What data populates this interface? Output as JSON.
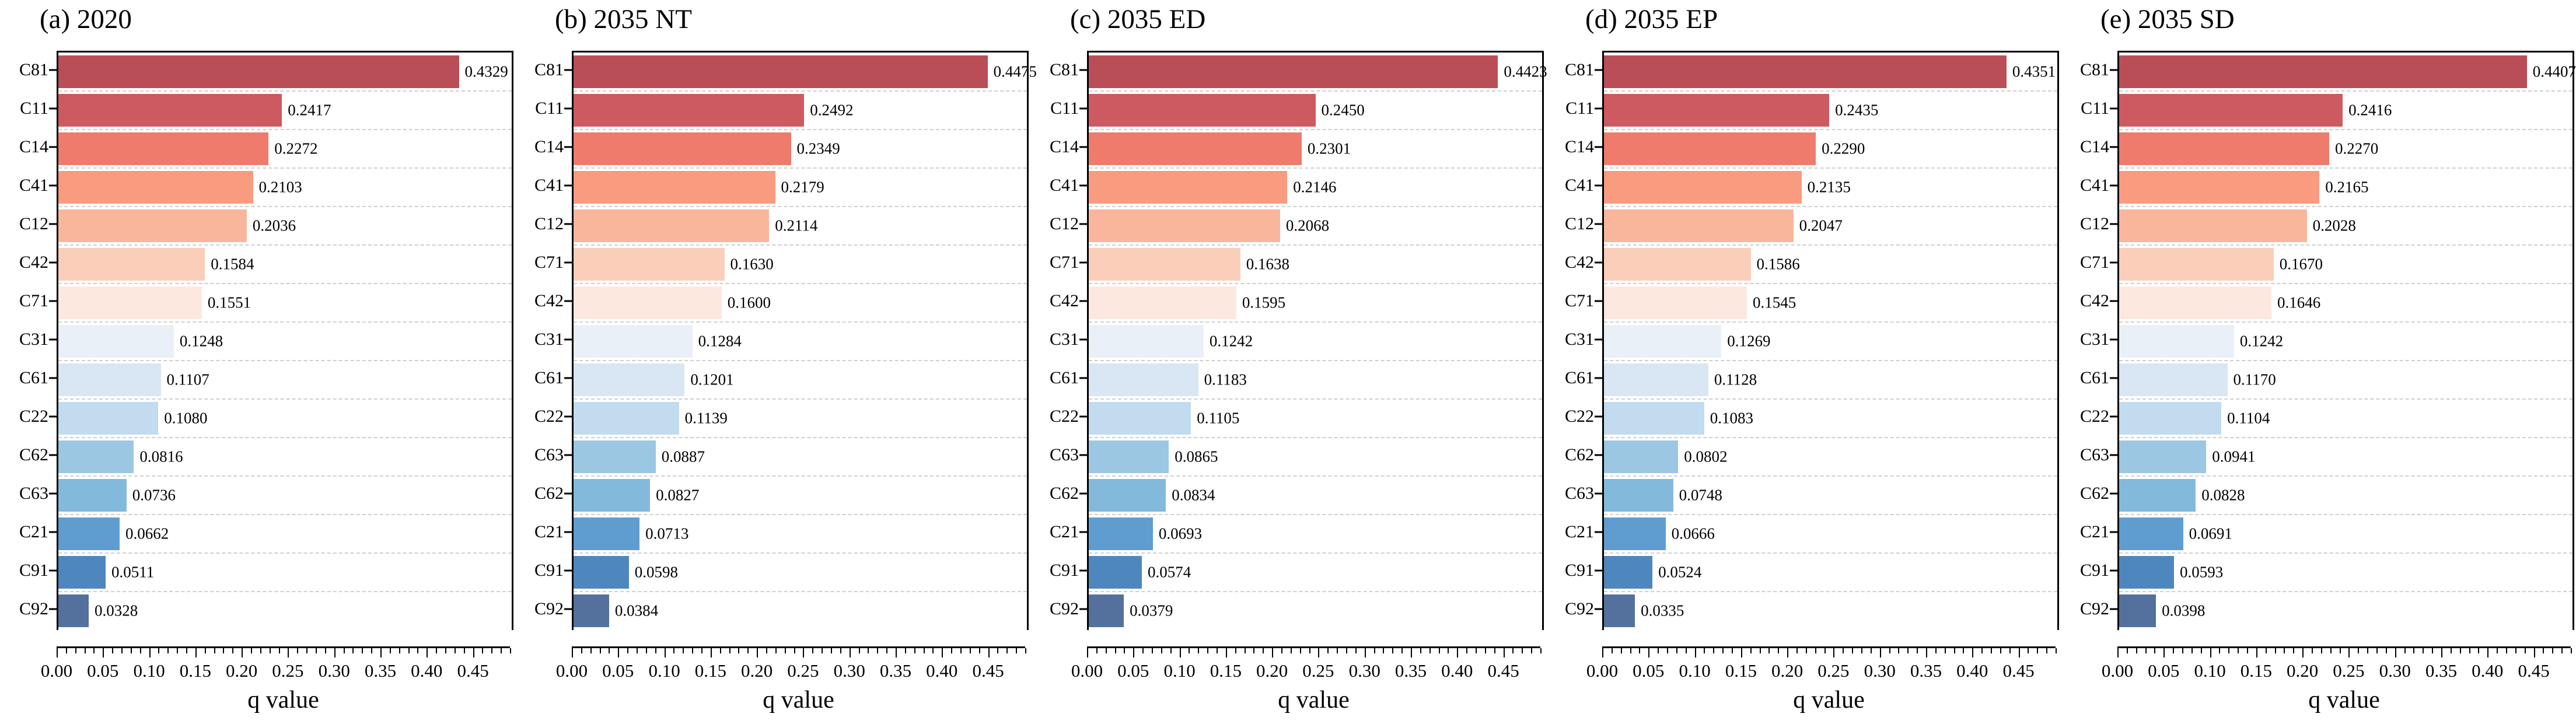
{
  "figure": {
    "xlabel": "q value",
    "background_color": "#ffffff",
    "text_color": "#000000",
    "gridline_color": "#cfcfcf",
    "spine_color": "#000000",
    "x_tick_labels": [
      "0.00",
      "0.05",
      "0.10",
      "0.15",
      "0.20",
      "0.25",
      "0.30",
      "0.35",
      "0.40",
      "0.45"
    ],
    "x_minor_step": 0.01,
    "x_major_step": 0.05,
    "x_max": 0.49,
    "bar_rank_colors": [
      "#ba4e56",
      "#cd5a60",
      "#ee7b6b",
      "#f89b7f",
      "#fab69c",
      "#fbceba",
      "#fde8df",
      "#e9f0f8",
      "#d8e7f3",
      "#c2dbee",
      "#9bc7e3",
      "#83badc",
      "#5f9dd0",
      "#4e87bd",
      "#53719c"
    ]
  },
  "chart_data": [
    {
      "type": "bar",
      "orientation": "horizontal",
      "title": "(a) 2020",
      "xlabel": "q value",
      "xlim": [
        0,
        0.49
      ],
      "grid": "dashed-horizontal",
      "categories": [
        "C81",
        "C11",
        "C14",
        "C41",
        "C12",
        "C42",
        "C71",
        "C31",
        "C61",
        "C22",
        "C62",
        "C63",
        "C21",
        "C91",
        "C92"
      ],
      "values": [
        0.4329,
        0.2417,
        0.2272,
        0.2103,
        0.2036,
        0.1584,
        0.1551,
        0.1248,
        0.1107,
        0.108,
        0.0816,
        0.0736,
        0.0662,
        0.0511,
        0.0328
      ],
      "values_text": [
        "0.4329",
        "0.2417",
        "0.2272",
        "0.2103",
        "0.2036",
        "0.1584",
        "0.1551",
        "0.1248",
        "0.1107",
        "0.1080",
        "0.0816",
        "0.0736",
        "0.0662",
        "0.0511",
        "0.0328"
      ]
    },
    {
      "type": "bar",
      "orientation": "horizontal",
      "title": "(b) 2035 NT",
      "xlabel": "q value",
      "xlim": [
        0,
        0.49
      ],
      "grid": "dashed-horizontal",
      "categories": [
        "C81",
        "C11",
        "C14",
        "C41",
        "C12",
        "C71",
        "C42",
        "C31",
        "C61",
        "C22",
        "C63",
        "C62",
        "C21",
        "C91",
        "C92"
      ],
      "values": [
        0.4475,
        0.2492,
        0.2349,
        0.2179,
        0.2114,
        0.163,
        0.16,
        0.1284,
        0.1201,
        0.1139,
        0.0887,
        0.0827,
        0.0713,
        0.0598,
        0.0384
      ],
      "values_text": [
        "0.4475",
        "0.2492",
        "0.2349",
        "0.2179",
        "0.2114",
        "0.1630",
        "0.1600",
        "0.1284",
        "0.1201",
        "0.1139",
        "0.0887",
        "0.0827",
        "0.0713",
        "0.0598",
        "0.0384"
      ]
    },
    {
      "type": "bar",
      "orientation": "horizontal",
      "title": "(c) 2035 ED",
      "xlabel": "q value",
      "xlim": [
        0,
        0.49
      ],
      "grid": "dashed-horizontal",
      "categories": [
        "C81",
        "C11",
        "C14",
        "C41",
        "C12",
        "C71",
        "C42",
        "C31",
        "C61",
        "C22",
        "C63",
        "C62",
        "C21",
        "C91",
        "C92"
      ],
      "values": [
        0.4423,
        0.245,
        0.2301,
        0.2146,
        0.2068,
        0.1638,
        0.1595,
        0.1242,
        0.1183,
        0.1105,
        0.0865,
        0.0834,
        0.0693,
        0.0574,
        0.0379
      ],
      "values_text": [
        "0.4423",
        "0.2450",
        "0.2301",
        "0.2146",
        "0.2068",
        "0.1638",
        "0.1595",
        "0.1242",
        "0.1183",
        "0.1105",
        "0.0865",
        "0.0834",
        "0.0693",
        "0.0574",
        "0.0379"
      ]
    },
    {
      "type": "bar",
      "orientation": "horizontal",
      "title": "(d) 2035 EP",
      "xlabel": "q value",
      "xlim": [
        0,
        0.49
      ],
      "grid": "dashed-horizontal",
      "categories": [
        "C81",
        "C11",
        "C14",
        "C41",
        "C12",
        "C42",
        "C71",
        "C31",
        "C61",
        "C22",
        "C62",
        "C63",
        "C21",
        "C91",
        "C92"
      ],
      "values": [
        0.4351,
        0.2435,
        0.229,
        0.2135,
        0.2047,
        0.1586,
        0.1545,
        0.1269,
        0.1128,
        0.1083,
        0.0802,
        0.0748,
        0.0666,
        0.0524,
        0.0335
      ],
      "values_text": [
        "0.4351",
        "0.2435",
        "0.2290",
        "0.2135",
        "0.2047",
        "0.1586",
        "0.1545",
        "0.1269",
        "0.1128",
        "0.1083",
        "0.0802",
        "0.0748",
        "0.0666",
        "0.0524",
        "0.0335"
      ]
    },
    {
      "type": "bar",
      "orientation": "horizontal",
      "title": "(e) 2035 SD",
      "xlabel": "q value",
      "xlim": [
        0,
        0.49
      ],
      "grid": "dashed-horizontal",
      "categories": [
        "C81",
        "C11",
        "C14",
        "C41",
        "C12",
        "C71",
        "C42",
        "C31",
        "C61",
        "C22",
        "C63",
        "C62",
        "C21",
        "C91",
        "C92"
      ],
      "values": [
        0.4407,
        0.2416,
        0.227,
        0.2165,
        0.2028,
        0.167,
        0.1646,
        0.1242,
        0.117,
        0.1104,
        0.0941,
        0.0828,
        0.0691,
        0.0593,
        0.0398
      ],
      "values_text": [
        "0.4407",
        "0.2416",
        "0.2270",
        "0.2165",
        "0.2028",
        "0.1670",
        "0.1646",
        "0.1242",
        "0.1170",
        "0.1104",
        "0.0941",
        "0.0828",
        "0.0691",
        "0.0593",
        "0.0398"
      ]
    }
  ]
}
